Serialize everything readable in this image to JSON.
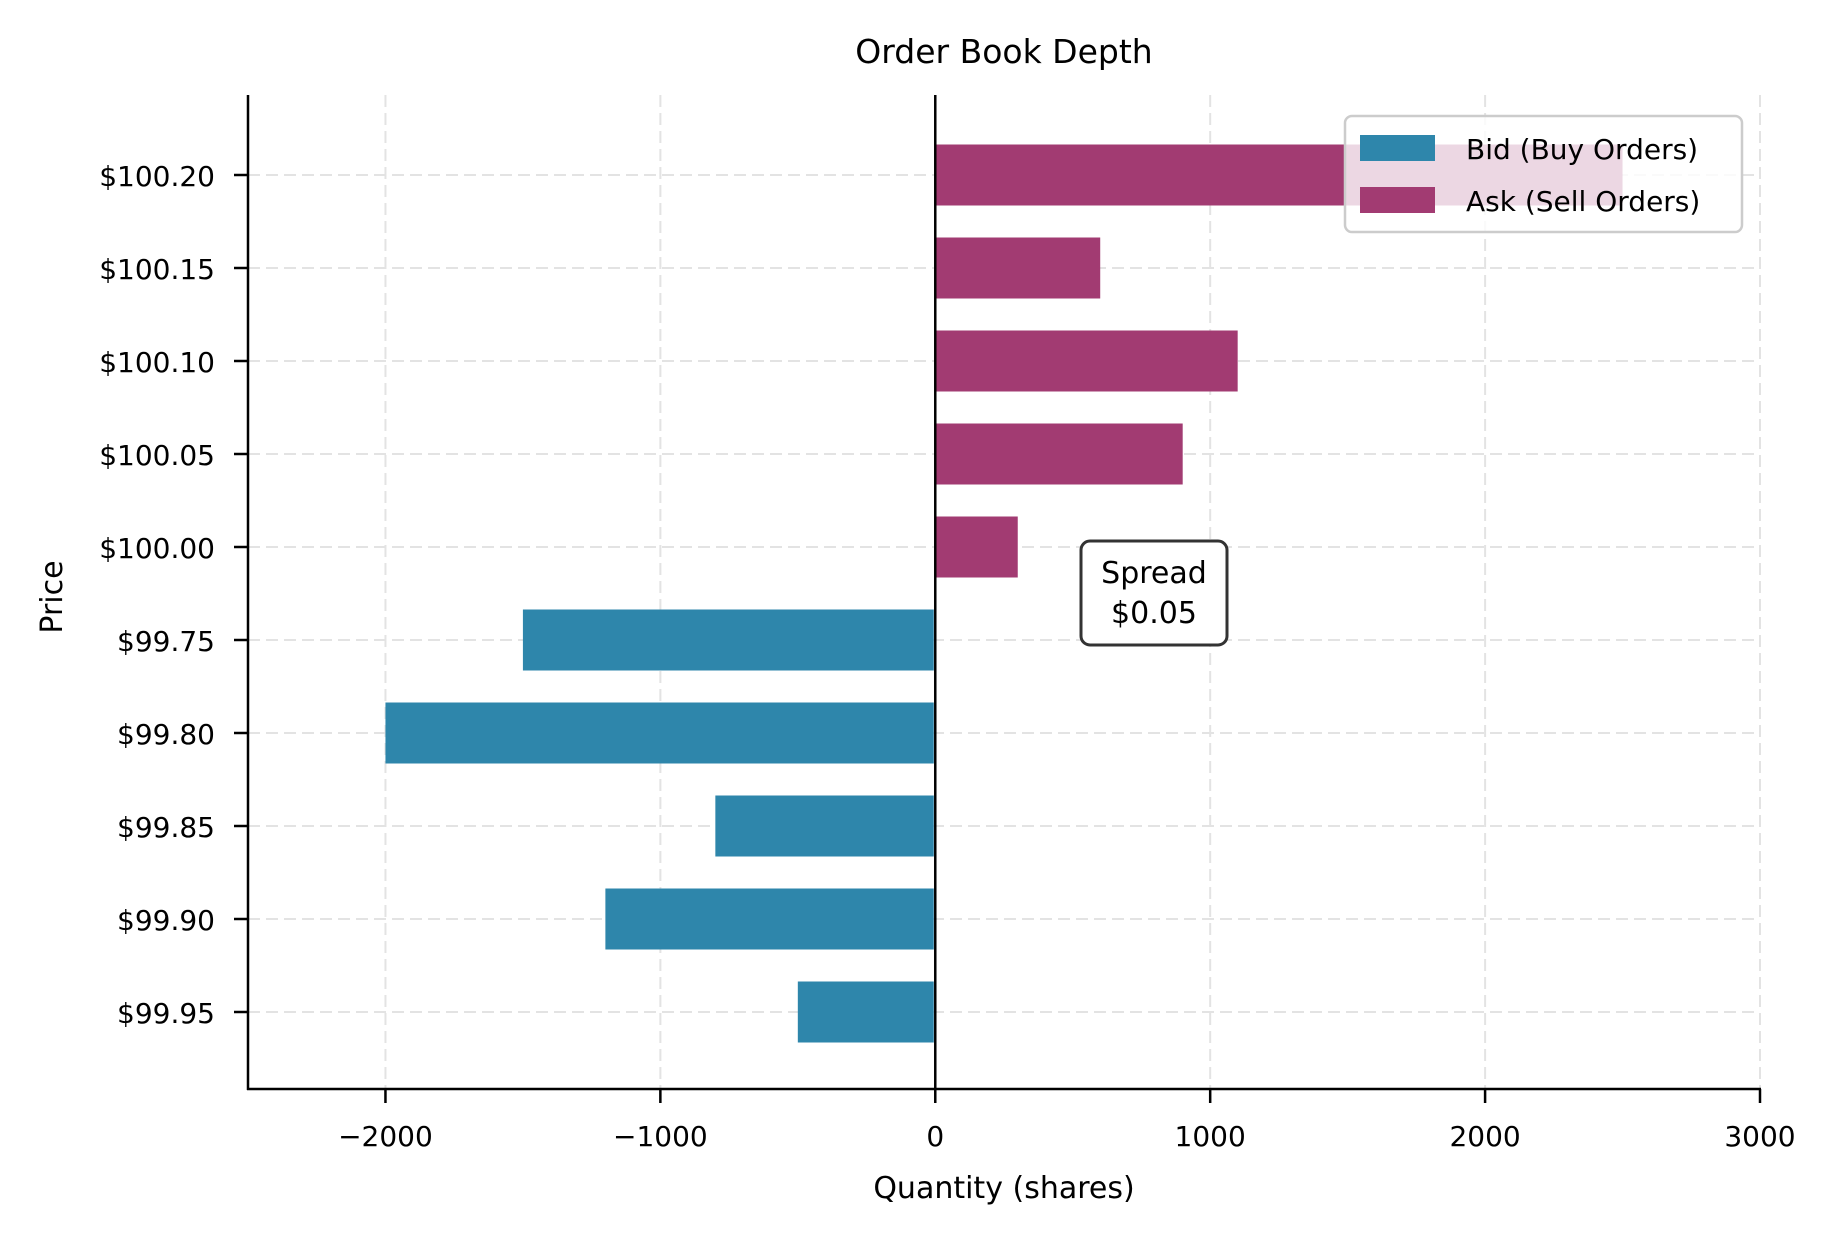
{
  "chart_data": {
    "type": "bar",
    "orientation": "horizontal",
    "title": "Order Book Depth",
    "xlabel": "Quantity (shares)",
    "ylabel": "Price",
    "xlim": [
      -2500,
      3000
    ],
    "xticks": [
      -2000,
      -1000,
      0,
      1000,
      2000,
      3000
    ],
    "xtick_labels": [
      "-2000",
      "-1000",
      "0",
      "1000",
      "2000",
      "3000"
    ],
    "grid": true,
    "legend_position": "upper right",
    "categories": [
      "$100.20",
      "$100.15",
      "$100.10",
      "$100.05",
      "$100.00",
      "$99.75",
      "$99.80",
      "$99.85",
      "$99.90",
      "$99.95"
    ],
    "series": [
      {
        "name": "Bid (Buy Orders)",
        "color": "#2e86ab",
        "values": [
          null,
          null,
          null,
          null,
          null,
          -1500,
          -2000,
          -800,
          -1200,
          -500
        ]
      },
      {
        "name": "Ask (Sell Orders)",
        "color": "#a23b72",
        "values": [
          2500,
          600,
          1100,
          900,
          300,
          null,
          null,
          null,
          null,
          null
        ]
      }
    ],
    "annotations": [
      {
        "text_lines": [
          "Spread",
          "$0.05"
        ],
        "x": 800,
        "y_between": [
          "$100.00",
          "$99.75"
        ]
      }
    ]
  }
}
